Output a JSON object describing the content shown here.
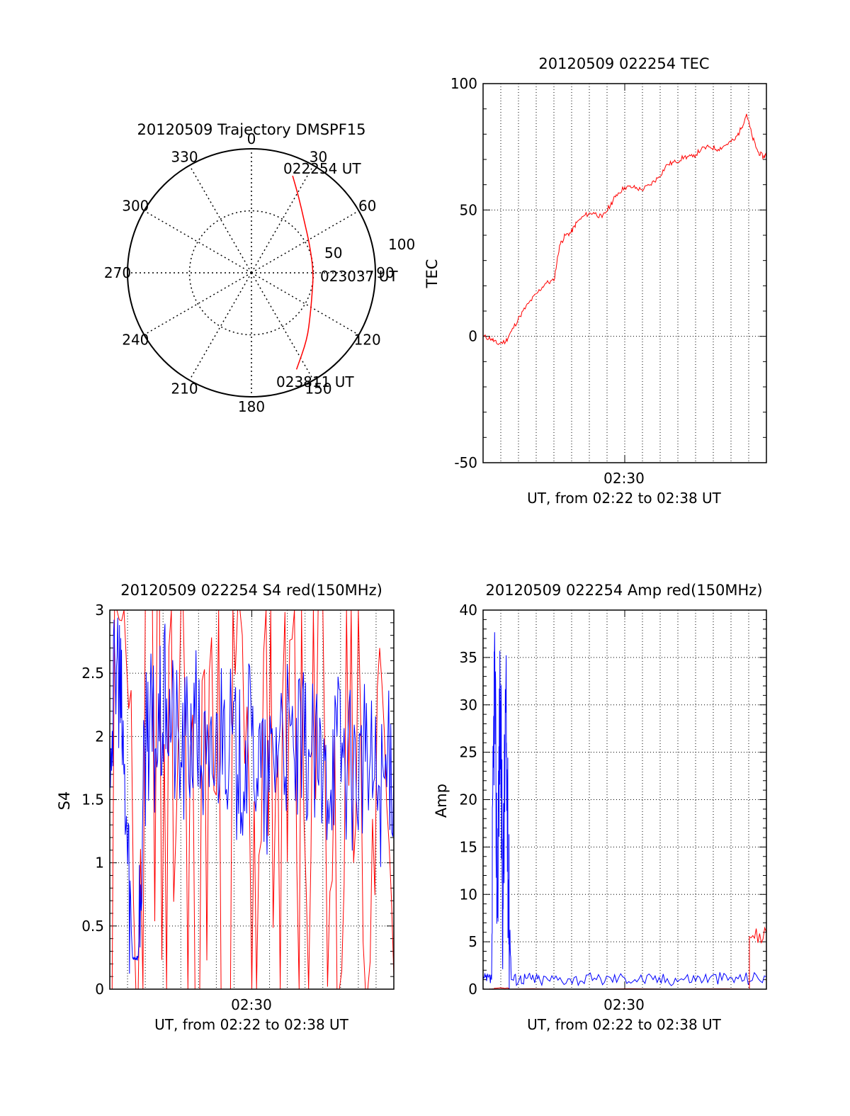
{
  "chart_data": [
    {
      "id": "trajectory",
      "type": "polar",
      "title": "20120509 Trajectory DMSPF15",
      "azimuth_labels": [
        "0",
        "30",
        "60",
        "90",
        "120",
        "150",
        "180",
        "210",
        "240",
        "270",
        "300",
        "330"
      ],
      "radial_labels": [
        "50",
        "100"
      ],
      "radial_range": [
        0,
        100
      ],
      "point_labels": {
        "start": "022254 UT",
        "middle": "023037 UT",
        "end": "023811 UT"
      },
      "series": [
        {
          "color": "#ff0000",
          "points": [
            {
              "az": 23,
              "r": 85
            },
            {
              "az": 32,
              "r": 72
            },
            {
              "az": 45,
              "r": 60
            },
            {
              "az": 65,
              "r": 52
            },
            {
              "az": 90,
              "r": 50
            },
            {
              "az": 110,
              "r": 52
            },
            {
              "az": 125,
              "r": 58
            },
            {
              "az": 140,
              "r": 70
            },
            {
              "az": 155,
              "r": 86
            }
          ]
        }
      ]
    },
    {
      "id": "tec",
      "type": "line",
      "title": "20120509 022254 TEC",
      "ylabel": "TEC",
      "xlabel": "UT, from 02:22 to 02:38 UT",
      "xtick_label": "02:30",
      "ylim": [
        -50,
        100
      ],
      "yticks": [
        "-50",
        "0",
        "50",
        "100"
      ],
      "grid": true,
      "series": [
        {
          "color": "#ff0000",
          "x": [
            0.0,
            0.03,
            0.05,
            0.08,
            0.1,
            0.13,
            0.16,
            0.19,
            0.22,
            0.25,
            0.27,
            0.29,
            0.31,
            0.33,
            0.36,
            0.39,
            0.42,
            0.45,
            0.47,
            0.5,
            0.53,
            0.56,
            0.59,
            0.62,
            0.65,
            0.68,
            0.71,
            0.74,
            0.77,
            0.8,
            0.83,
            0.86,
            0.89,
            0.91,
            0.93,
            0.95,
            0.97,
            0.99,
            1.0
          ],
          "values": [
            0,
            -1,
            -3,
            -2,
            2,
            8,
            13,
            17,
            21,
            22,
            36,
            40,
            41,
            45,
            48,
            49,
            47,
            52,
            56,
            59,
            59,
            58,
            60,
            63,
            68,
            69,
            71,
            71,
            74,
            75,
            74,
            76,
            78,
            82,
            88,
            79,
            73,
            71,
            72
          ]
        }
      ]
    },
    {
      "id": "s4",
      "type": "line",
      "title": "20120509 022254 S4 red(150MHz)",
      "ylabel": "S4",
      "xlabel": "UT, from 02:22 to 02:38 UT",
      "xtick_label": "02:30",
      "ylim": [
        0,
        3
      ],
      "yticks": [
        "0",
        "0.5",
        "1",
        "1.5",
        "2",
        "2.5",
        "3"
      ],
      "grid": true,
      "series": [
        {
          "color": "#ff0000",
          "x": [
            0.0,
            0.05,
            0.1,
            0.15,
            0.2,
            0.25,
            0.3,
            0.35,
            0.4,
            0.45,
            0.5,
            0.55,
            0.6,
            0.65,
            0.7,
            0.75,
            0.8,
            0.85,
            0.9,
            0.95,
            1.0
          ],
          "values": [
            0,
            3,
            0,
            3,
            0,
            3,
            0,
            2.5,
            0,
            3,
            0,
            3,
            0,
            3,
            0,
            3,
            0,
            3,
            0,
            2.7,
            0.1
          ]
        },
        {
          "color": "#0000ff",
          "x": [
            0.0,
            0.03,
            0.05,
            0.08,
            0.1,
            0.13,
            0.16,
            0.2,
            0.25,
            0.3,
            0.35,
            0.4,
            0.45,
            0.5,
            0.55,
            0.6,
            0.65,
            0.7,
            0.75,
            0.8,
            0.85,
            0.9,
            0.95,
            1.0
          ],
          "values": [
            2.0,
            2.6,
            1.7,
            0.25,
            0.25,
            2.2,
            1.9,
            2.3,
            1.8,
            2.1,
            1.6,
            2.2,
            1.7,
            2.0,
            1.5,
            2.1,
            1.8,
            1.9,
            1.6,
            2.0,
            1.7,
            1.8,
            1.6,
            1.8
          ]
        }
      ]
    },
    {
      "id": "amp",
      "type": "line",
      "title": "20120509 022254 Amp red(150MHz)",
      "ylabel": "Amp",
      "xlabel": "UT, from 02:22 to 02:38 UT",
      "xtick_label": "02:30",
      "ylim": [
        0,
        40
      ],
      "yticks": [
        "0",
        "5",
        "10",
        "15",
        "20",
        "25",
        "30",
        "35",
        "40"
      ],
      "grid": true,
      "series": [
        {
          "color": "#0000ff",
          "x": [
            0.0,
            0.03,
            0.04,
            0.05,
            0.06,
            0.07,
            0.08,
            0.09,
            0.1,
            0.15,
            0.2,
            0.3,
            0.4,
            0.5,
            0.6,
            0.7,
            0.8,
            0.9,
            1.0
          ],
          "values": [
            1.0,
            1.0,
            35,
            10,
            31,
            9,
            30,
            10,
            1.0,
            1.2,
            1.0,
            1.1,
            1.0,
            1.2,
            1.0,
            1.1,
            1.2,
            1.1,
            1.3
          ]
        },
        {
          "color": "#ff0000",
          "x": [
            0.0,
            0.04,
            0.04,
            0.09,
            0.09,
            0.94,
            0.94,
            1.0
          ],
          "values": [
            0,
            0,
            0.1,
            0.1,
            0,
            0,
            5.5,
            6.0
          ]
        }
      ]
    }
  ]
}
